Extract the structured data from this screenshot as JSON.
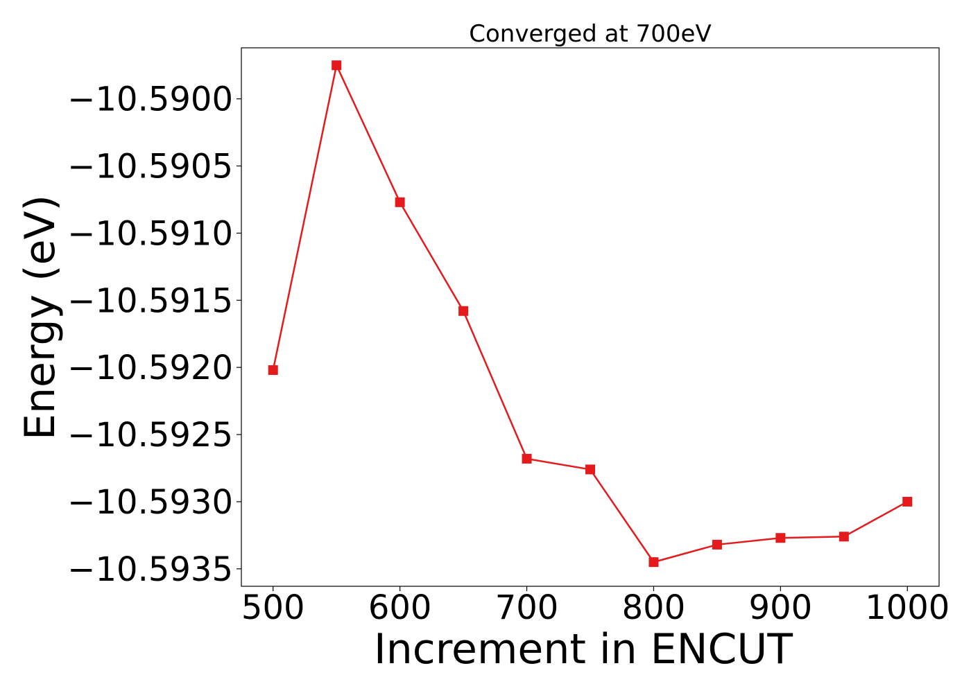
{
  "chart_data": {
    "type": "line",
    "title": "Converged at 700eV",
    "xlabel": "Increment in ENCUT",
    "ylabel": "Energy (eV)",
    "xlim": [
      475,
      1025
    ],
    "ylim": [
      -10.59363,
      -10.58962
    ],
    "x_ticks": [
      500,
      600,
      700,
      800,
      900,
      1000
    ],
    "x_tick_labels": [
      "500",
      "600",
      "700",
      "800",
      "900",
      "1000"
    ],
    "y_ticks": [
      -10.59,
      -10.5905,
      -10.591,
      -10.5915,
      -10.592,
      -10.5925,
      -10.593,
      -10.5935
    ],
    "y_tick_labels": [
      "−10.5900",
      "−10.5905",
      "−10.5910",
      "−10.5915",
      "−10.5920",
      "−10.5925",
      "−10.5930",
      "−10.5935"
    ],
    "grid": false,
    "series": [
      {
        "color": "#e41a1c",
        "marker": "square",
        "x": [
          500,
          550,
          600,
          650,
          700,
          750,
          800,
          850,
          900,
          950,
          1000
        ],
        "y": [
          -10.59202,
          -10.58975,
          -10.59077,
          -10.59158,
          -10.59268,
          -10.59276,
          -10.59345,
          -10.59332,
          -10.59327,
          -10.59326,
          -10.593
        ]
      }
    ]
  }
}
